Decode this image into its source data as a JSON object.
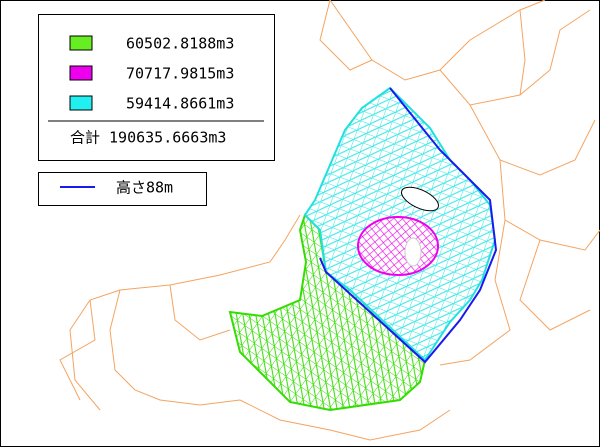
{
  "legend": {
    "items": [
      {
        "label": "60502.8188m3"
      },
      {
        "label": "70717.9815m3"
      },
      {
        "label": "59414.8661m3"
      }
    ],
    "total": "合計 190635.6663m3"
  },
  "line_legend": {
    "label": "高さ88m"
  }
}
